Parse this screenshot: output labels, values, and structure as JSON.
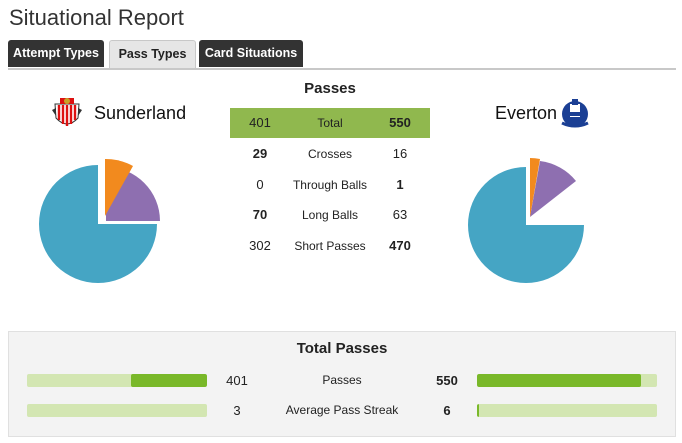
{
  "page_title": "Situational Report",
  "tabs": [
    {
      "label": "Attempt Types",
      "active": false
    },
    {
      "label": "Pass Types",
      "active": true
    },
    {
      "label": "Card Situations",
      "active": false
    }
  ],
  "home_team": {
    "name": "Sunderland",
    "crest": "sunderland-crest-icon"
  },
  "away_team": {
    "name": "Everton",
    "crest": "everton-crest-icon"
  },
  "passes": {
    "title": "Passes",
    "rows": [
      {
        "label": "Total",
        "home": "401",
        "away": "550",
        "bold": "away"
      },
      {
        "label": "Crosses",
        "home": "29",
        "away": "16",
        "bold": "home"
      },
      {
        "label": "Through Balls",
        "home": "0",
        "away": "1",
        "bold": "away"
      },
      {
        "label": "Long Balls",
        "home": "70",
        "away": "63",
        "bold": "home"
      },
      {
        "label": "Short Passes",
        "home": "302",
        "away": "470",
        "bold": "away"
      }
    ]
  },
  "pie_colors": {
    "crosses": "#f28a1e",
    "long_balls": "#8e6fb0",
    "short_passes": "#45a5c4",
    "through_balls": "#90b84e"
  },
  "total_passes": {
    "title": "Total Passes",
    "rows": [
      {
        "label": "Passes",
        "home": "401",
        "away": "550",
        "bold": "away",
        "home_fraction": 0.42,
        "away_fraction": 0.91
      },
      {
        "label": "Average Pass Streak",
        "home": "3",
        "away": "6",
        "bold": "away",
        "home_fraction": 0.0,
        "away_fraction": 0.01
      }
    ]
  },
  "colors": {
    "bar_fill": "#79b829",
    "bar_track": "#d3e6b2",
    "total_highlight": "#90b84e",
    "tab_dark": "#333333"
  }
}
